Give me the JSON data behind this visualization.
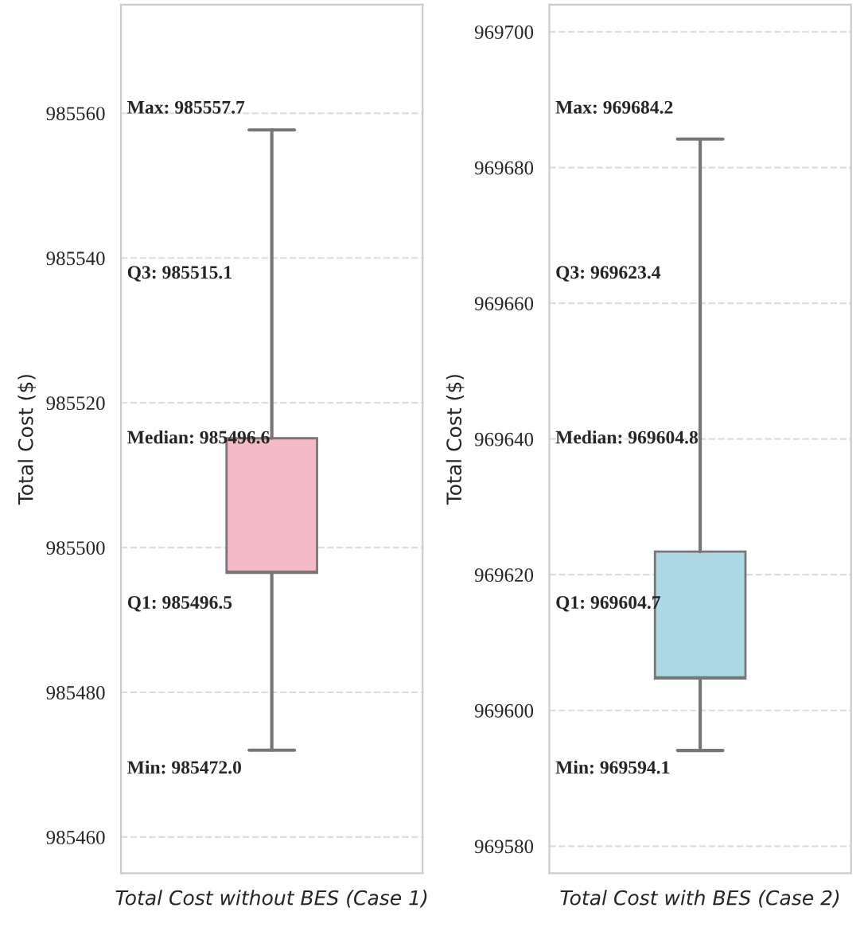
{
  "chart_data": [
    {
      "type": "box",
      "categories": [
        null
      ],
      "xlabel": "Total Cost without BES (Case 1)",
      "ylabel": "Total Cost ($)",
      "color": "#f4bac5",
      "boxes": [
        {
          "low": 985472.0,
          "q1": 985496.5,
          "median": 985496.6,
          "q3": 985515.1,
          "high": 985557.7
        }
      ],
      "ylim": [
        985455,
        985575
      ],
      "yticks": [
        985460,
        985480,
        985500,
        985520,
        985540,
        985560
      ],
      "grid": "y",
      "annotations": [
        "Max: 985557.7",
        "Q3: 985515.1",
        "Median: 985496.6",
        "Q1: 985496.5",
        "Min: 985472.0"
      ]
    },
    {
      "type": "box",
      "categories": [
        null
      ],
      "xlabel": "Total Cost with BES (Case 2)",
      "ylabel": "Total Cost ($)",
      "color": "#add8e6",
      "boxes": [
        {
          "low": 969594.1,
          "q1": 969604.7,
          "median": 969604.8,
          "q3": 969623.4,
          "high": 969684.2
        }
      ],
      "ylim": [
        969576,
        969704
      ],
      "yticks": [
        969580,
        969600,
        969620,
        969640,
        969660,
        969680,
        969700
      ],
      "grid": "y",
      "annotations": [
        "Max: 969684.2",
        "Q3: 969623.4",
        "Median: 969604.8",
        "Q1: 969604.7",
        "Min: 969594.1"
      ]
    }
  ]
}
